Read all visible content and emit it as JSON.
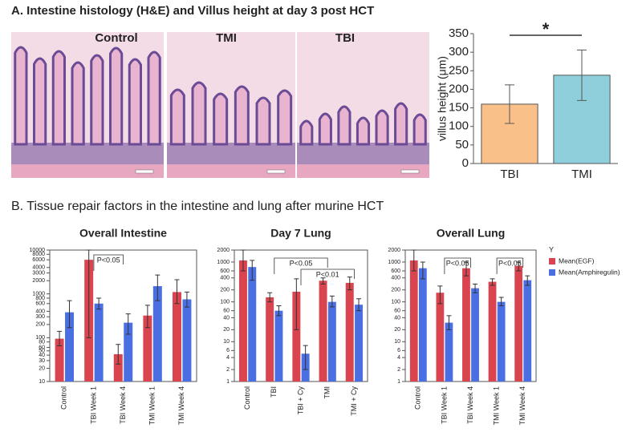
{
  "figure": {
    "panel_a_title": "A. Intestine histology (H&E) and Villus height at day 3 post HCT",
    "panel_b_title": "B. Tissue repair factors in the intestine and lung after murine HCT",
    "image_labels": [
      "Control",
      "TMI",
      "TBI"
    ]
  },
  "chart_data": [
    {
      "type": "bar",
      "ylabel": "villus height (μm)",
      "categories": [
        "TBI",
        "TMI"
      ],
      "values": [
        160,
        238
      ],
      "errors": [
        52,
        68
      ],
      "colors": [
        "#f9c08a",
        "#8fcfdc"
      ],
      "ylim": [
        0,
        350
      ],
      "yticks": [
        0,
        50,
        100,
        150,
        200,
        250,
        300,
        350
      ],
      "annotations": [
        "*"
      ]
    },
    {
      "type": "logbar",
      "title": "Overall Intestine",
      "log": true,
      "categories": [
        "Control",
        "TBI Week 1",
        "TBI Week 4",
        "TMI Week 1",
        "TMI Week 4"
      ],
      "series": [
        {
          "name": "Mean(EGF)",
          "color": "#d9444f",
          "values": [
            95,
            6000,
            42,
            320,
            1100
          ],
          "lower": [
            65,
            100,
            25,
            170,
            600
          ],
          "upper": [
            140,
            10000,
            70,
            550,
            2100
          ]
        },
        {
          "name": "Mean(Amphiregulin)",
          "color": "#4a6fe3",
          "values": [
            380,
            600,
            220,
            1500,
            750
          ],
          "lower": [
            170,
            450,
            120,
            700,
            500
          ],
          "upper": [
            700,
            800,
            350,
            2700,
            1100
          ]
        }
      ],
      "ylim": [
        10,
        10000
      ],
      "yticks": [
        10,
        20,
        30,
        40,
        50,
        60,
        80,
        100,
        200,
        300,
        400,
        600,
        800,
        1000,
        2000,
        3000,
        4000,
        6000,
        8000,
        10000
      ],
      "annotations": [
        "P<0.05"
      ]
    },
    {
      "type": "logbar",
      "title": "Day 7 Lung",
      "log": true,
      "categories": [
        "Control",
        "TBI",
        "TBI + Cy",
        "TMI",
        "TMI + Cy"
      ],
      "series": [
        {
          "name": "Mean(EGF)",
          "color": "#d9444f",
          "values": [
            1100,
            130,
            180,
            340,
            300
          ],
          "lower": [
            600,
            100,
            20,
            280,
            200
          ],
          "upper": [
            2000,
            170,
            380,
            400,
            420
          ]
        },
        {
          "name": "Mean(Amphiregulin)",
          "color": "#4a6fe3",
          "values": [
            750,
            60,
            5,
            100,
            85
          ],
          "lower": [
            350,
            45,
            2,
            75,
            60
          ],
          "upper": [
            1100,
            80,
            8,
            140,
            120
          ]
        }
      ],
      "ylim": [
        1,
        2000
      ],
      "yticks": [
        1,
        2,
        4,
        6,
        10,
        20,
        40,
        60,
        100,
        200,
        400,
        600,
        1000,
        2000
      ],
      "annotations": [
        "P<0.05",
        "P<0.01"
      ]
    },
    {
      "type": "logbar",
      "title": "Overall Lung",
      "log": true,
      "legend_title": "Y",
      "legend": "right",
      "categories": [
        "Control",
        "TBI Week 1",
        "TBI Week 4",
        "TMI Week 1",
        "TMI Week 4"
      ],
      "series": [
        {
          "name": "Mean(EGF)",
          "color": "#d9444f",
          "values": [
            1100,
            170,
            700,
            320,
            800
          ],
          "lower": [
            600,
            90,
            450,
            260,
            600
          ],
          "upper": [
            2000,
            250,
            1000,
            380,
            1000
          ]
        },
        {
          "name": "Mean(Amphiregulin)",
          "color": "#4a6fe3",
          "values": [
            700,
            30,
            220,
            100,
            350
          ],
          "lower": [
            380,
            20,
            170,
            80,
            260
          ],
          "upper": [
            1000,
            45,
            280,
            130,
            450
          ]
        }
      ],
      "ylim": [
        1,
        2000
      ],
      "yticks": [
        1,
        2,
        4,
        6,
        10,
        20,
        40,
        60,
        100,
        200,
        400,
        600,
        1000,
        2000
      ],
      "annotations": [
        "P<0.05",
        "P<0.05"
      ]
    }
  ]
}
